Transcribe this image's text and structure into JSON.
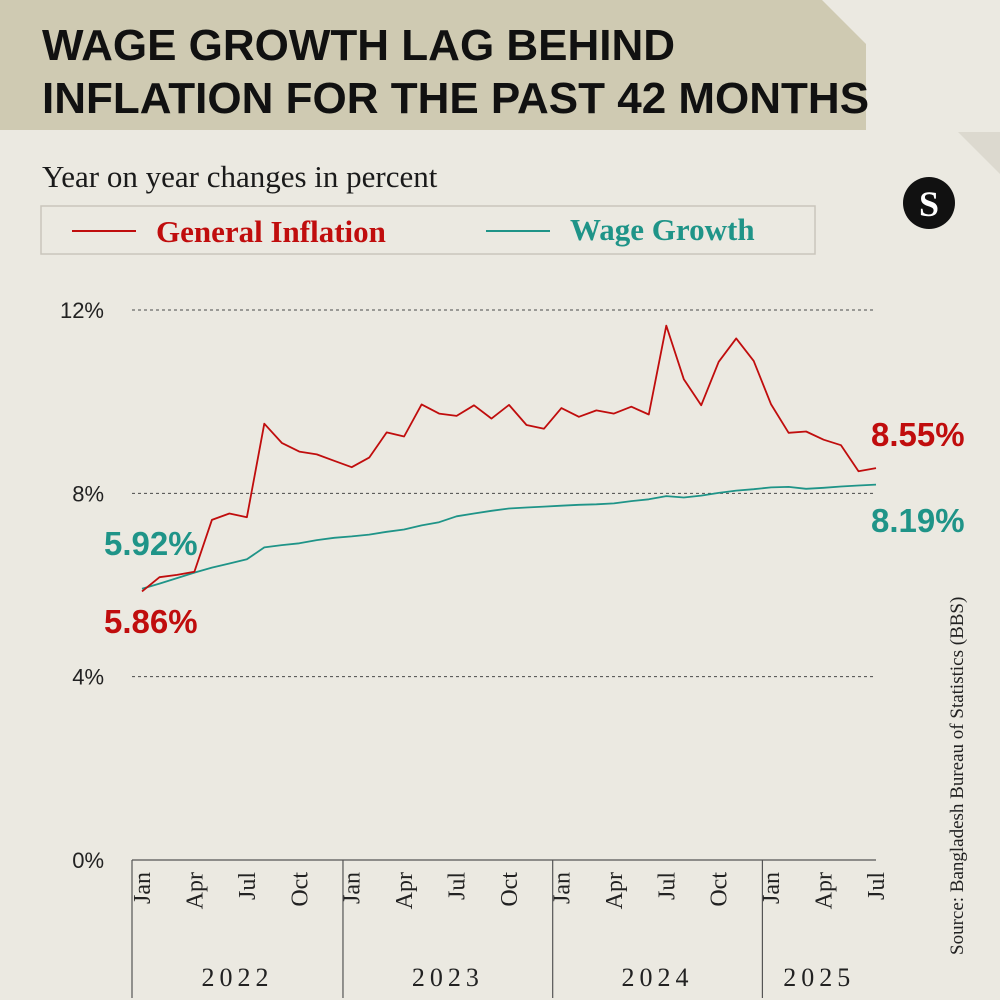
{
  "brand": {
    "logo_letter": "S"
  },
  "chart_data": {
    "type": "line",
    "title_line1": "WAGE GROWTH LAG BEHIND",
    "title_line2": "INFLATION FOR THE PAST 42 MONTHS",
    "subtitle": "Year on year changes in percent",
    "ylim": [
      0,
      12
    ],
    "yticks": [
      {
        "value": 0,
        "label": "0%"
      },
      {
        "value": 4,
        "label": "4%"
      },
      {
        "value": 8,
        "label": "8%"
      },
      {
        "value": 12,
        "label": "12%"
      }
    ],
    "x": [
      "2022-01",
      "2022-02",
      "2022-03",
      "2022-04",
      "2022-05",
      "2022-06",
      "2022-07",
      "2022-08",
      "2022-09",
      "2022-10",
      "2022-11",
      "2022-12",
      "2023-01",
      "2023-02",
      "2023-03",
      "2023-04",
      "2023-05",
      "2023-06",
      "2023-07",
      "2023-08",
      "2023-09",
      "2023-10",
      "2023-11",
      "2023-12",
      "2024-01",
      "2024-02",
      "2024-03",
      "2024-04",
      "2024-05",
      "2024-06",
      "2024-07",
      "2024-08",
      "2024-09",
      "2024-10",
      "2024-11",
      "2024-12",
      "2025-01",
      "2025-02",
      "2025-03",
      "2025-04",
      "2025-05",
      "2025-06",
      "2025-07"
    ],
    "xticks": [
      {
        "index": 0,
        "label": "Jan"
      },
      {
        "index": 3,
        "label": "Apr"
      },
      {
        "index": 6,
        "label": "Jul"
      },
      {
        "index": 9,
        "label": "Oct"
      },
      {
        "index": 12,
        "label": "Jan"
      },
      {
        "index": 15,
        "label": "Apr"
      },
      {
        "index": 18,
        "label": "Jul"
      },
      {
        "index": 21,
        "label": "Oct"
      },
      {
        "index": 24,
        "label": "Jan"
      },
      {
        "index": 27,
        "label": "Apr"
      },
      {
        "index": 30,
        "label": "Jul"
      },
      {
        "index": 33,
        "label": "Oct"
      },
      {
        "index": 36,
        "label": "Jan"
      },
      {
        "index": 39,
        "label": "Apr"
      },
      {
        "index": 42,
        "label": "Jul"
      }
    ],
    "years": [
      {
        "label": "2022",
        "start": 0,
        "end": 11
      },
      {
        "label": "2023",
        "start": 12,
        "end": 23
      },
      {
        "label": "2024",
        "start": 24,
        "end": 35
      },
      {
        "label": "2025",
        "start": 36,
        "end": 42
      }
    ],
    "series": [
      {
        "name": "General Inflation",
        "color": "#c00d0d",
        "values": [
          5.86,
          6.17,
          6.22,
          6.29,
          7.42,
          7.56,
          7.48,
          9.52,
          9.1,
          8.91,
          8.85,
          8.71,
          8.57,
          8.78,
          9.33,
          9.24,
          9.94,
          9.74,
          9.69,
          9.92,
          9.63,
          9.93,
          9.49,
          9.41,
          9.86,
          9.67,
          9.81,
          9.74,
          9.89,
          9.72,
          11.66,
          10.49,
          9.92,
          10.87,
          11.38,
          10.89,
          9.94,
          9.32,
          9.35,
          9.17,
          9.05,
          8.48,
          8.55
        ],
        "start_label": "5.86%",
        "end_label": "8.55%"
      },
      {
        "name": "Wage Growth",
        "color": "#1f9488",
        "values": [
          5.92,
          6.03,
          6.15,
          6.27,
          6.38,
          6.47,
          6.56,
          6.82,
          6.87,
          6.91,
          6.98,
          7.03,
          7.06,
          7.1,
          7.16,
          7.21,
          7.3,
          7.37,
          7.5,
          7.56,
          7.62,
          7.67,
          7.69,
          7.71,
          7.73,
          7.75,
          7.76,
          7.78,
          7.83,
          7.87,
          7.94,
          7.91,
          7.95,
          8.01,
          8.06,
          8.09,
          8.13,
          8.14,
          8.1,
          8.12,
          8.15,
          8.17,
          8.19
        ],
        "start_label": "5.92%",
        "end_label": "8.19%"
      }
    ],
    "legend": {
      "placement": "top-left"
    },
    "source": "Source: Bangladesh Bureau of Statistics (BBS)"
  }
}
